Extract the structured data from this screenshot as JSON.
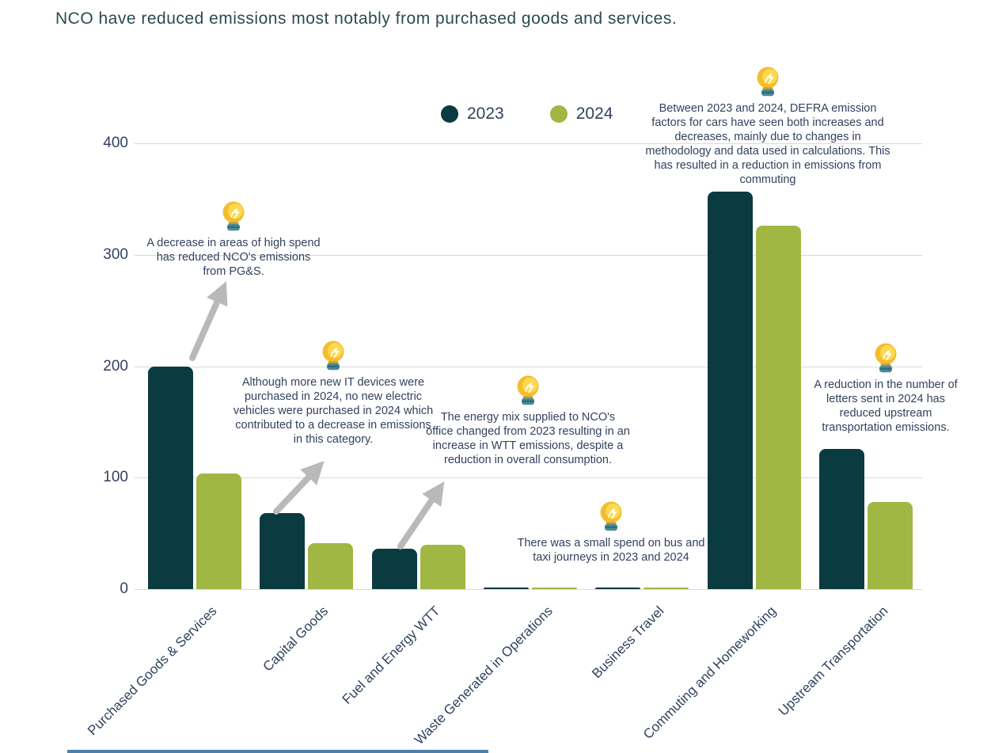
{
  "title": "NCO have reduced emissions most notably from purchased goods and services.",
  "legend": {
    "items": [
      {
        "label": "2023",
        "color": "#0a3b41"
      },
      {
        "label": "2024",
        "color": "#a0b843"
      }
    ]
  },
  "chart_data": {
    "type": "bar",
    "title": "NCO have reduced emissions most notably from purchased goods and services.",
    "categories": [
      "Purchased Goods & Services",
      "Capital Goods",
      "Fuel and Energy WTT",
      "Waste Generated in Operations",
      "Business Travel",
      "Commuting and Homeworking",
      "Upstream Transportation"
    ],
    "series": [
      {
        "name": "2023",
        "color": "#0a3b41",
        "values": [
          200,
          68,
          36,
          1.5,
          1.5,
          357,
          126
        ]
      },
      {
        "name": "2024",
        "color": "#a0b843",
        "values": [
          104,
          41,
          40,
          1,
          1.5,
          326,
          78
        ]
      }
    ],
    "xlabel": "",
    "ylabel": "",
    "ylim": [
      0,
      400
    ],
    "yticks": [
      0,
      100,
      200,
      300,
      400
    ],
    "grid": true,
    "legend_position": "top-center"
  },
  "annotations": [
    {
      "id": "pgs",
      "text": "A decrease in areas of high spend has reduced NCO's emissions from PG&S."
    },
    {
      "id": "capital-goods",
      "text": "Although more new IT devices were purchased in 2024, no new electric vehicles were purchased in 2024 which contributed to a decrease in emissions in this category."
    },
    {
      "id": "fuel-energy-wtt",
      "text": "The energy mix supplied to NCO's office changed from 2023 resulting in an increase in WTT emissions, despite a reduction in overall consumption."
    },
    {
      "id": "business-travel",
      "text": "There was a small spend on bus and taxi journeys in 2023 and 2024"
    },
    {
      "id": "commuting",
      "text": "Between 2023 and 2024, DEFRA emission factors for cars have seen both increases and decreases, mainly due to changes in methodology and data used in calculations. This has resulted in a reduction in emissions from commuting"
    },
    {
      "id": "upstream",
      "text": "A reduction in the number of letters sent in 2024 has reduced upstream transportation emissions."
    }
  ],
  "colors": {
    "bar_2023": "#0a3b41",
    "bar_2024": "#a0b843",
    "gridline": "#d9d9d9",
    "text": "#33415e",
    "title_text": "#2a4b50",
    "arrow": "#b9b9b9",
    "bulb_yellow": "#f3bd2e",
    "bulb_base": "#4a8a96"
  }
}
